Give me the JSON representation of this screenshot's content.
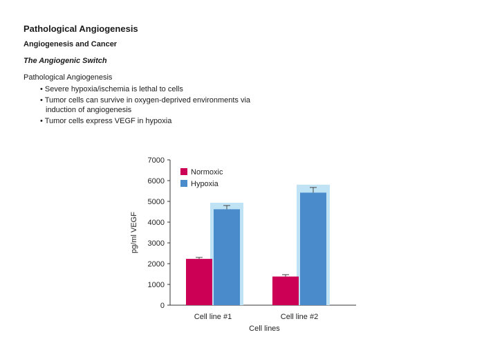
{
  "slide": {
    "title": "Pathological Angiogenesis",
    "subtitle": "Angiogenesis and Cancer",
    "section": "The Angiogenic Switch",
    "intro": "Pathological Angiogenesis",
    "bullets": [
      "• Severe hypoxia/ischemia is lethal to cells",
      "• Tumor cells can survive in oxygen-deprived environments via induction of angiogenesis",
      "• Tumor cells express VEGF in hypoxia"
    ]
  },
  "chart_data": {
    "type": "bar",
    "categories": [
      "Cell line #1",
      "Cell line #2"
    ],
    "series": [
      {
        "name": "Normoxic",
        "values": [
          2230,
          1380
        ],
        "errors": [
          70,
          90
        ],
        "color": "#cc0055"
      },
      {
        "name": "Hypoxia",
        "values": [
          4620,
          5420
        ],
        "errors": [
          180,
          250
        ],
        "color": "#4a8ccb"
      }
    ],
    "xlabel": "Cell lines",
    "ylabel": "pg/ml VEGF",
    "ylim": [
      0,
      7000
    ],
    "yticks": [
      0,
      1000,
      2000,
      3000,
      4000,
      5000,
      6000,
      7000
    ],
    "legend_position": "top-left",
    "highlight_color": "#bfe3f5",
    "grid": false
  }
}
